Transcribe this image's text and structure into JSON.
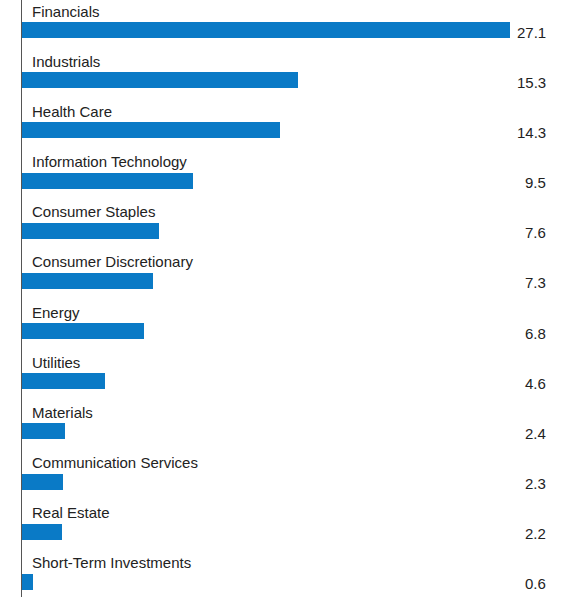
{
  "chart_data": {
    "type": "bar",
    "orientation": "horizontal",
    "categories": [
      "Financials",
      "Industrials",
      "Health Care",
      "Information Technology",
      "Consumer Staples",
      "Consumer Discretionary",
      "Energy",
      "Utilities",
      "Materials",
      "Communication Services",
      "Real Estate",
      "Short-Term Investments"
    ],
    "values": [
      27.1,
      15.3,
      14.3,
      9.5,
      7.6,
      7.3,
      6.8,
      4.6,
      2.4,
      2.3,
      2.2,
      0.6
    ],
    "color": "#0a7ac6",
    "xlim": [
      0,
      27.1
    ],
    "grid": false,
    "data_labels": true,
    "tick_labels": false
  }
}
